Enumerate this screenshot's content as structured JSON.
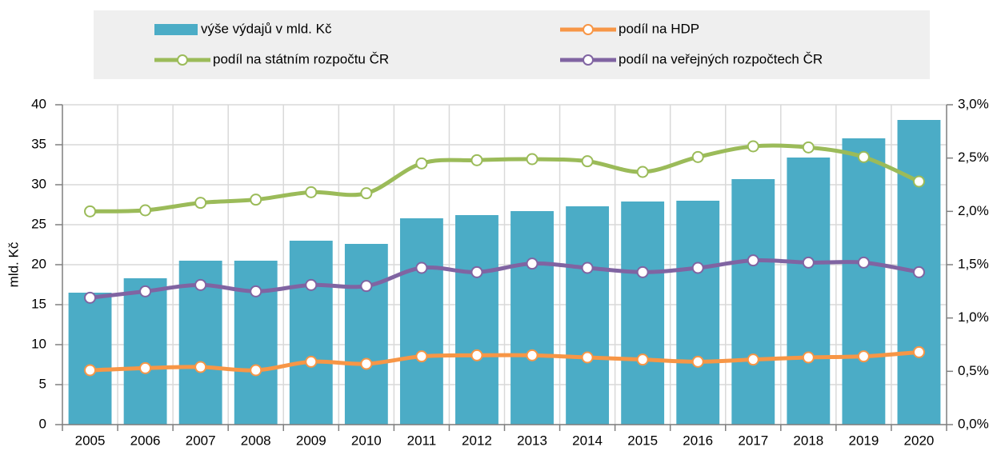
{
  "chart_data": {
    "type": "bar-line",
    "y_label": "mld. Kč",
    "categories": [
      "2005",
      "2006",
      "2007",
      "2008",
      "2009",
      "2010",
      "2011",
      "2012",
      "2013",
      "2014",
      "2015",
      "2016",
      "2017",
      "2018",
      "2019",
      "2020"
    ],
    "series": [
      {
        "name": "výše výdajů v mld. Kč",
        "type": "bar",
        "color": "#4bacc6",
        "values": [
          16.5,
          18.3,
          20.5,
          20.5,
          23.0,
          22.6,
          25.8,
          26.2,
          26.7,
          27.3,
          27.9,
          28.0,
          30.7,
          33.4,
          35.8,
          38.1
        ]
      },
      {
        "name": "podíl na HDP",
        "type": "line",
        "axis": "y2",
        "color": "#f79646",
        "values": [
          0.51,
          0.53,
          0.54,
          0.51,
          0.59,
          0.57,
          0.64,
          0.65,
          0.65,
          0.63,
          0.61,
          0.59,
          0.61,
          0.63,
          0.64,
          0.68
        ]
      },
      {
        "name": "podíl na státním rozpočtu ČR",
        "type": "line",
        "axis": "y2",
        "color": "#9bbb59",
        "values": [
          2.0,
          2.01,
          2.08,
          2.11,
          2.18,
          2.17,
          2.45,
          2.48,
          2.49,
          2.47,
          2.37,
          2.51,
          2.61,
          2.6,
          2.51,
          2.28
        ]
      },
      {
        "name": "podíl na veřejných rozpočtech ČR",
        "type": "line",
        "axis": "y2",
        "color": "#8064a2",
        "values": [
          1.19,
          1.25,
          1.31,
          1.25,
          1.31,
          1.3,
          1.47,
          1.43,
          1.51,
          1.47,
          1.43,
          1.47,
          1.54,
          1.52,
          1.52,
          1.43
        ]
      }
    ],
    "ylim": [
      0,
      40
    ],
    "yticks": [
      0,
      5,
      10,
      15,
      20,
      25,
      30,
      35,
      40
    ],
    "y2lim": [
      0,
      3
    ],
    "y2ticks": [
      {
        "value": 0,
        "label": "0,0%"
      },
      {
        "value": 0.5,
        "label": "0,5%"
      },
      {
        "value": 1,
        "label": "1,0%"
      },
      {
        "value": 1.5,
        "label": "1,5%"
      },
      {
        "value": 2,
        "label": "2,0%"
      },
      {
        "value": 2.5,
        "label": "2,5%"
      },
      {
        "value": 3,
        "label": "3,0%"
      }
    ],
    "grid": true,
    "legend": "top"
  }
}
